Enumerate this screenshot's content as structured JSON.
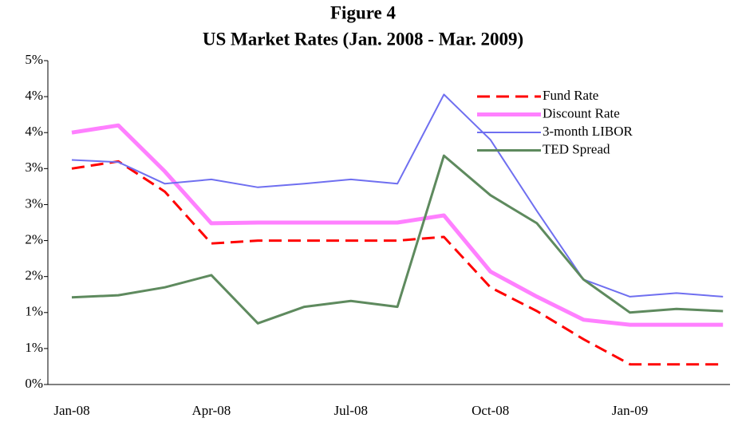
{
  "chart_data": {
    "type": "line",
    "title": "Figure 4",
    "subtitle": "US Market Rates (Jan. 2008 - Mar. 2009)",
    "categories": [
      "Jan-08",
      null,
      null,
      "Apr-08",
      null,
      null,
      "Jul-08",
      null,
      null,
      "Oct-08",
      null,
      null,
      "Jan-09",
      null,
      null
    ],
    "series": [
      {
        "name": "Fund Rate",
        "color": "#ff0000",
        "dashed": true,
        "values": [
          3.0,
          3.1,
          2.68,
          1.96,
          2.0,
          2.0,
          2.0,
          2.0,
          2.05,
          1.35,
          1.02,
          0.63,
          0.28,
          0.28,
          0.28
        ]
      },
      {
        "name": "Discount Rate",
        "color": "#ff80ff",
        "values": [
          3.5,
          3.6,
          2.96,
          2.24,
          2.25,
          2.25,
          2.25,
          2.25,
          2.35,
          1.57,
          1.22,
          0.9,
          0.83,
          0.83,
          0.83
        ]
      },
      {
        "name": "3-month LIBOR",
        "color": "#6f6ff0",
        "values": [
          3.12,
          3.09,
          2.79,
          2.85,
          2.74,
          2.79,
          2.85,
          2.79,
          4.03,
          3.4,
          2.41,
          1.46,
          1.22,
          1.27,
          1.22
        ]
      },
      {
        "name": "TED Spread",
        "color": "#5e8a5e",
        "values": [
          1.21,
          1.24,
          1.35,
          1.52,
          0.85,
          1.08,
          1.16,
          1.08,
          3.18,
          2.63,
          2.24,
          1.46,
          1.0,
          1.05,
          1.02
        ]
      }
    ],
    "ylim": [
      0,
      4.5
    ],
    "yticks": [
      {
        "value": 0,
        "label": "0%"
      },
      {
        "value": 0.5,
        "label": "1%"
      },
      {
        "value": 1,
        "label": "1%"
      },
      {
        "value": 1.5,
        "label": "2%"
      },
      {
        "value": 2,
        "label": "2%"
      },
      {
        "value": 2.5,
        "label": "3%"
      },
      {
        "value": 3,
        "label": "3%"
      },
      {
        "value": 3.5,
        "label": "4%"
      },
      {
        "value": 4,
        "label": "4%"
      },
      {
        "value": 4.5,
        "label": "5%"
      }
    ],
    "grid": false,
    "legend": "top-right"
  }
}
